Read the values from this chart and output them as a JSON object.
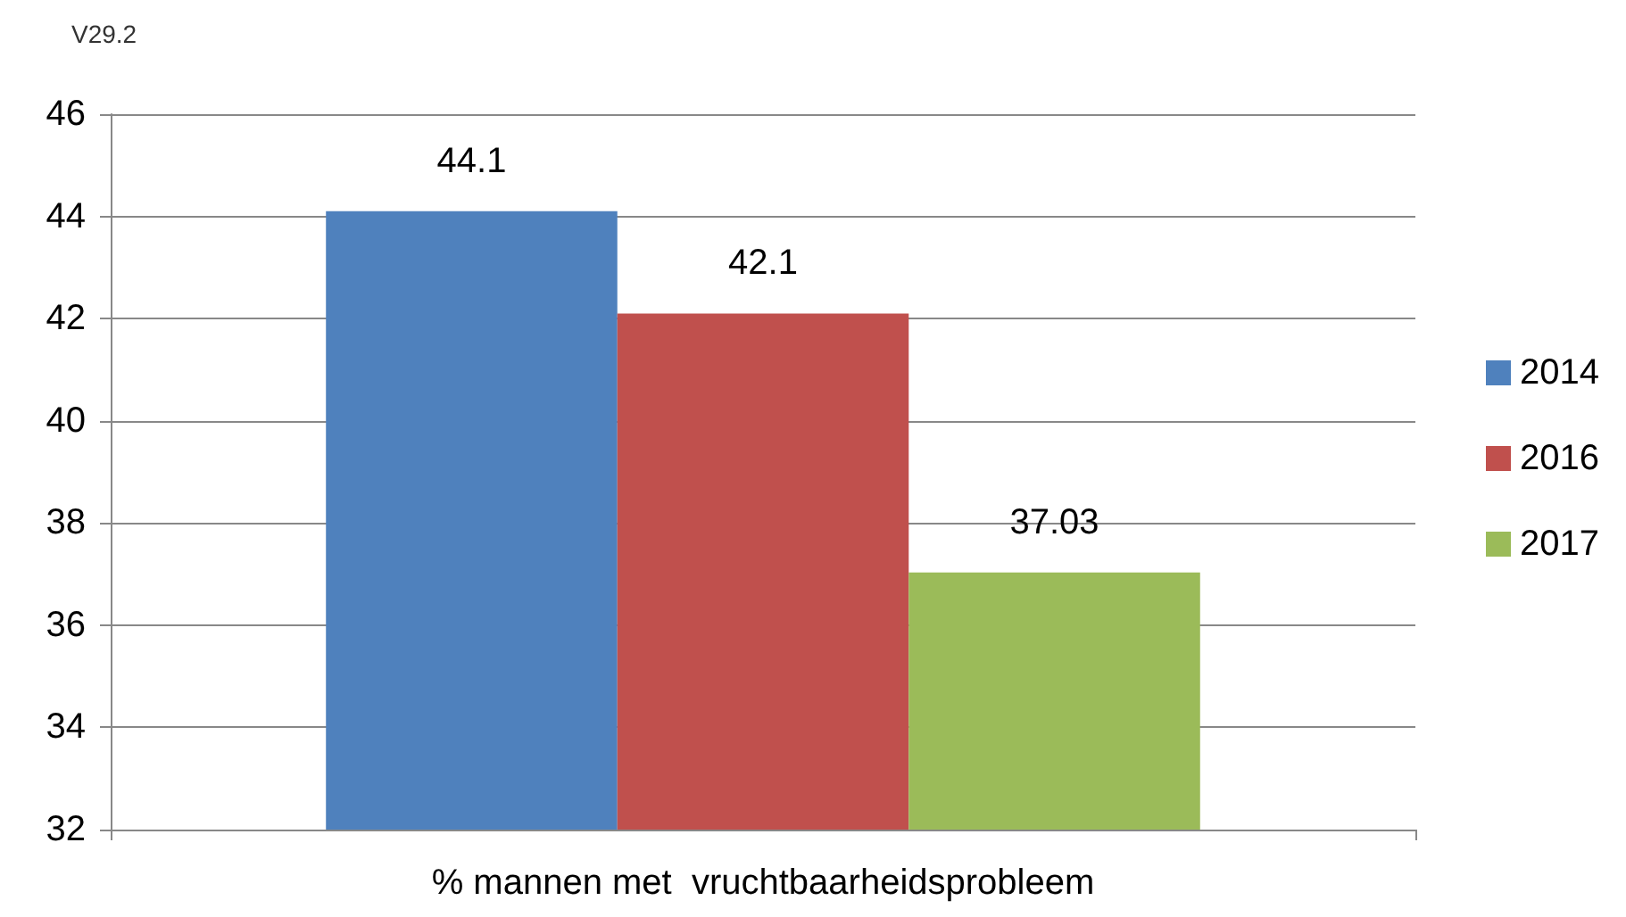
{
  "chart_data": {
    "type": "bar",
    "categories": [
      "% mannen met  vruchtbaarheidsprobleem"
    ],
    "series": [
      {
        "name": "2014",
        "color": "#4f81bd",
        "values": [
          44.1
        ]
      },
      {
        "name": "2016",
        "color": "#c0504d",
        "values": [
          42.1
        ]
      },
      {
        "name": "2017",
        "color": "#9bbb59",
        "values": [
          37.03
        ]
      }
    ],
    "ylim": [
      32,
      46
    ],
    "yticks": [
      32,
      34,
      36,
      38,
      40,
      42,
      44,
      46
    ],
    "grid": "y",
    "legend": "right",
    "data_labels": true,
    "annotations": [
      "V29.2"
    ]
  }
}
